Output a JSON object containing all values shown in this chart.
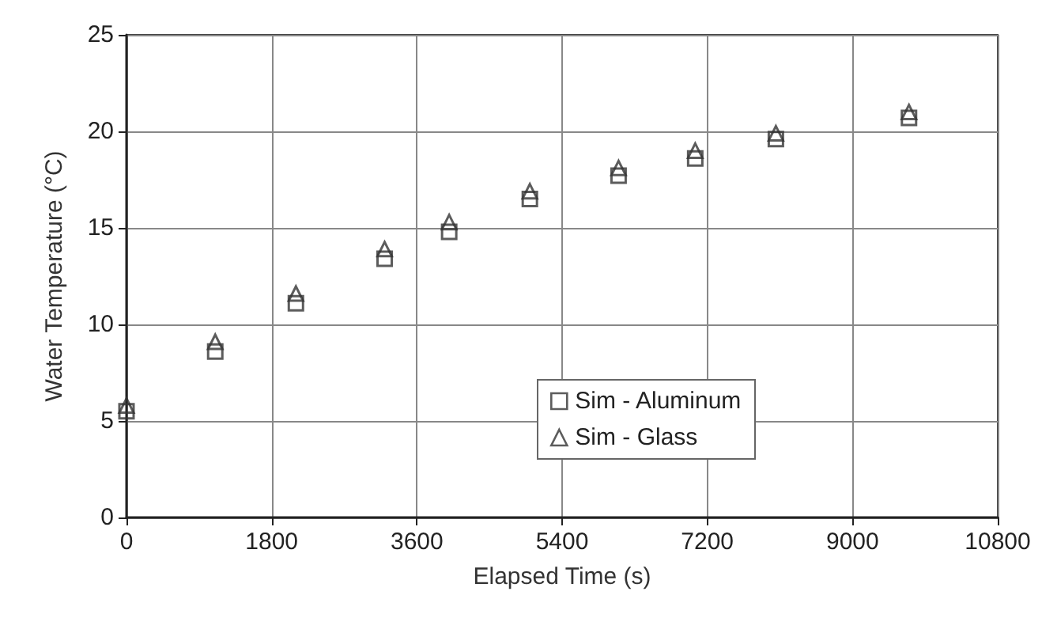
{
  "chart_data": {
    "type": "scatter",
    "xlabel": "Elapsed Time (s)",
    "ylabel": "Water Temperature (°C)",
    "x": [
      0,
      1100,
      2100,
      3200,
      4000,
      5000,
      6100,
      7050,
      8050,
      9700
    ],
    "series": [
      {
        "name": "Sim - Aluminum",
        "color": "#333333",
        "marker": "square",
        "values": [
          5.5,
          8.6,
          11.1,
          13.4,
          14.8,
          16.5,
          17.7,
          18.6,
          19.6,
          20.7
        ]
      },
      {
        "name": "Sim - Glass",
        "color": "#333333",
        "marker": "triangle",
        "values": [
          5.8,
          9.1,
          11.6,
          13.9,
          15.3,
          16.9,
          18.1,
          19.0,
          19.9,
          21.0
        ]
      }
    ],
    "xlim": [
      0,
      10800
    ],
    "xticks": [
      0,
      1800,
      3600,
      5400,
      7200,
      9000,
      10800
    ],
    "ylim": [
      0,
      25
    ],
    "yticks": [
      0,
      5,
      10,
      15,
      20,
      25
    ],
    "grid": true,
    "legend": "bottom right"
  }
}
